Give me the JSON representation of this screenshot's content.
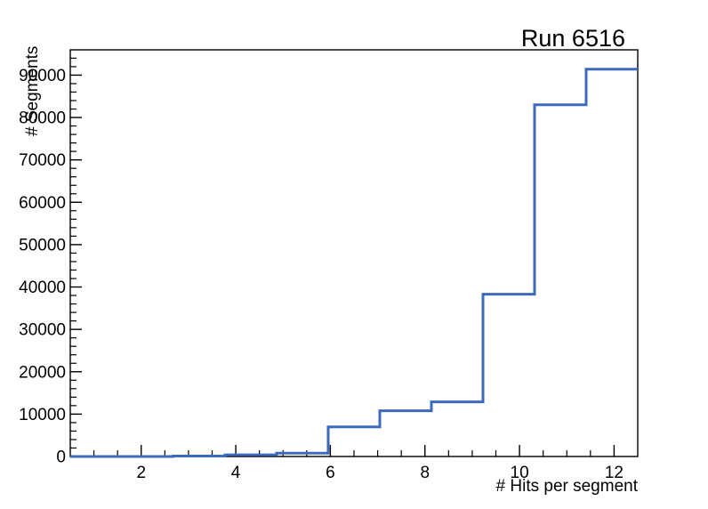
{
  "window": {
    "background_color": "#ffffff"
  },
  "chart_data": {
    "type": "bar",
    "style": "step-histogram-outline",
    "title": "Run 6516",
    "xlabel": "# Hits per segment",
    "ylabel": "# Segments",
    "xlim": [
      0.5,
      12.5
    ],
    "ylim": [
      0,
      95970
    ],
    "bin_edges": [
      0.5,
      1.5909,
      2.6818,
      3.7727,
      4.8636,
      5.9545,
      7.0455,
      8.1364,
      9.2273,
      10.3182,
      11.4091,
      12.5
    ],
    "counts": [
      0,
      0,
      100,
      400,
      800,
      7000,
      10800,
      12900,
      38300,
      83000,
      91400
    ],
    "x_major_ticks": [
      2,
      4,
      6,
      8,
      10,
      12
    ],
    "x_minor_step": 0.5,
    "y_major_ticks": [
      0,
      10000,
      20000,
      30000,
      40000,
      50000,
      60000,
      70000,
      80000,
      90000
    ],
    "y_minor_step": 2000,
    "grid": false,
    "legend": null,
    "line_color": "#3c6abf",
    "axis_color": "#000000",
    "text_color": "#000000",
    "background_color": "#ffffff"
  }
}
